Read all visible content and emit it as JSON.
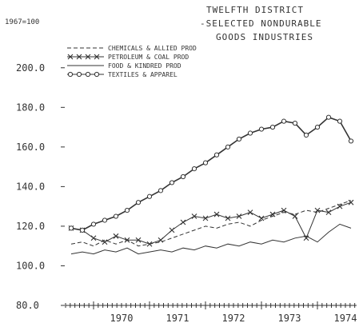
{
  "chart_data": {
    "type": "line",
    "title": [
      "TWELFTH DISTRICT",
      "-SELECTED NONDURABLE",
      "GOODS INDUSTRIES"
    ],
    "base_note": "1967=100",
    "xlabel": "",
    "ylabel": "",
    "y_ticks": [
      "80.0",
      "100.0",
      "120.0",
      "140.0",
      "160.0",
      "180.0",
      "200.0"
    ],
    "ylim": [
      80,
      210
    ],
    "x_ticks": [
      "1970",
      "1971",
      "1972",
      "1973",
      "1974"
    ],
    "xlim": [
      1969.5,
      1974.7
    ],
    "legend_position": "top-left",
    "grid": false,
    "series": [
      {
        "name": "CHEMICALS & ALLIED PROD",
        "style": "dashed",
        "x": [
          1969.6,
          1969.8,
          1970.0,
          1970.2,
          1970.4,
          1970.6,
          1970.8,
          1971.0,
          1971.2,
          1971.4,
          1971.6,
          1971.8,
          1972.0,
          1972.2,
          1972.4,
          1972.6,
          1972.8,
          1973.0,
          1973.2,
          1973.4,
          1973.6,
          1973.8,
          1974.0,
          1974.2,
          1974.4,
          1974.6
        ],
        "y": [
          111,
          112,
          110,
          113,
          111,
          113,
          110,
          111,
          112,
          114,
          116,
          118,
          120,
          119,
          121,
          122,
          120,
          123,
          125,
          127,
          126,
          128,
          127,
          129,
          131,
          133
        ]
      },
      {
        "name": "PETROLEUM & COAL PROD",
        "style": "x-markers",
        "x": [
          1969.6,
          1969.8,
          1970.0,
          1970.2,
          1970.4,
          1970.6,
          1970.8,
          1971.0,
          1971.2,
          1971.4,
          1971.6,
          1971.8,
          1972.0,
          1972.2,
          1972.4,
          1972.6,
          1972.8,
          1973.0,
          1973.2,
          1973.4,
          1973.6,
          1973.8,
          1974.0,
          1974.2,
          1974.4,
          1974.6
        ],
        "y": [
          119,
          118,
          114,
          112,
          115,
          113,
          113,
          111,
          113,
          118,
          122,
          125,
          124,
          126,
          124,
          125,
          127,
          124,
          126,
          128,
          125,
          114,
          128,
          127,
          130,
          132
        ]
      },
      {
        "name": "FOOD & KINDRED PROD",
        "style": "solid",
        "x": [
          1969.6,
          1969.8,
          1970.0,
          1970.2,
          1970.4,
          1970.6,
          1970.8,
          1971.0,
          1971.2,
          1971.4,
          1971.6,
          1971.8,
          1972.0,
          1972.2,
          1972.4,
          1972.6,
          1972.8,
          1973.0,
          1973.2,
          1973.4,
          1973.6,
          1973.8,
          1974.0,
          1974.2,
          1974.4,
          1974.6
        ],
        "y": [
          106,
          107,
          106,
          108,
          107,
          109,
          106,
          107,
          108,
          107,
          109,
          108,
          110,
          109,
          111,
          110,
          112,
          111,
          113,
          112,
          114,
          115,
          112,
          117,
          121,
          119
        ]
      },
      {
        "name": "TEXTILES & APPAREL",
        "style": "o-markers",
        "x": [
          1969.6,
          1969.8,
          1970.0,
          1970.2,
          1970.4,
          1970.6,
          1970.8,
          1971.0,
          1971.2,
          1971.4,
          1971.6,
          1971.8,
          1972.0,
          1972.2,
          1972.4,
          1972.6,
          1972.8,
          1973.0,
          1973.2,
          1973.4,
          1973.6,
          1973.8,
          1974.0,
          1974.2,
          1974.4,
          1974.6
        ],
        "y": [
          119,
          118,
          121,
          123,
          125,
          128,
          132,
          135,
          138,
          142,
          145,
          149,
          152,
          156,
          160,
          164,
          167,
          169,
          170,
          173,
          172,
          166,
          170,
          175,
          173,
          163
        ]
      }
    ]
  }
}
